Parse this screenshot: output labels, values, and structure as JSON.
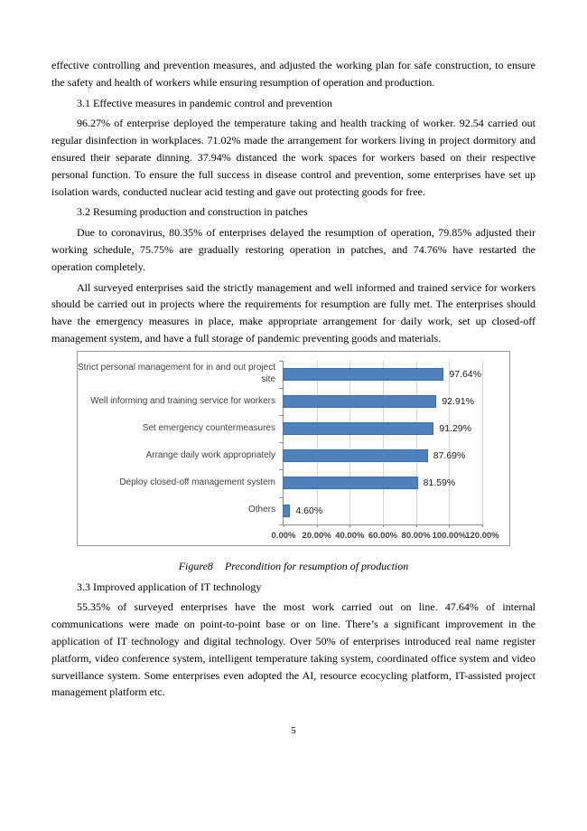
{
  "document": {
    "para_continuation": "effective controlling and prevention measures, and adjusted the working plan for safe construction, to ensure the safety and health of workers while ensuring resumption of operation and production.",
    "section_3_1": {
      "heading": "3.1 Effective measures in pandemic control and prevention",
      "paragraph": "96.27% of enterprise deployed the temperature taking and health tracking of worker. 92.54 carried out regular disinfection in workplaces. 71.02% made the arrangement for workers living in project dormitory and ensured their separate dinning. 37.94% distanced the work spaces for workers based on their respective personal function. To ensure the full success in disease control and prevention, some enterprises have set up isolation wards, conducted nuclear acid testing and gave out protecting goods for free."
    },
    "section_3_2": {
      "heading": "3.2 Resuming production and construction in patches",
      "paragraph_1": "Due to coronavirus, 80.35% of enterprises delayed the resumption of operation, 79.85% adjusted their working schedule, 75.75% are gradually restoring operation in patches, and 74.76% have restarted the operation completely.",
      "paragraph_2": "All surveyed enterprises said the strictly management and well informed and trained service for workers should be carried out in projects where the requirements for resumption are fully met. The enterprises should have the emergency measures in place, make appropriate arrangement for daily work, set up closed-off management system, and have a full storage of pandemic preventing goods and materials."
    },
    "figure": {
      "label": "Figure8",
      "caption": "Precondition for resumption of production"
    },
    "section_3_3": {
      "heading": "3.3 Improved application of IT technology",
      "paragraph": "55.35% of surveyed enterprises have the most work carried out on line. 47.64% of internal communications were made on point-to-point base or on line. There’s a significant improvement in the application of IT technology and digital technology. Over 50% of enterprises introduced real name register platform, video conference system, intelligent temperature taking system, coordinated office system and video surveillance system. Some enterprises even adopted the AI, resource ecocycling platform, IT-assisted project management platform etc."
    },
    "page_number": "5"
  },
  "chart_data": {
    "type": "bar",
    "orientation": "horizontal",
    "title": "",
    "categories": [
      "Strict personal management for in and out project site",
      "Well informing and training service for workers",
      "Set emergency countermeasures",
      "Arrange daily work appropriately",
      "Deploy closed-off management system",
      "Others"
    ],
    "values": [
      97.64,
      92.91,
      91.29,
      87.69,
      81.59,
      4.6
    ],
    "value_labels": [
      "97.64%",
      "92.91%",
      "91.29%",
      "87.69%",
      "81.59%",
      "4.60%"
    ],
    "x_tick_labels": [
      "0.00%",
      "20.00%",
      "40.00%",
      "60.00%",
      "80.00%",
      "100.00%",
      "120.00%"
    ],
    "xlim": [
      0,
      120
    ],
    "grid": true,
    "legend": false,
    "bar_color": "#4F81BD",
    "bar_border_color": "#3C6DA8",
    "gridline_color": "#D4D4D4",
    "axis_color": "#8C8C8C",
    "chart_border_color": "#9B9B9B"
  }
}
